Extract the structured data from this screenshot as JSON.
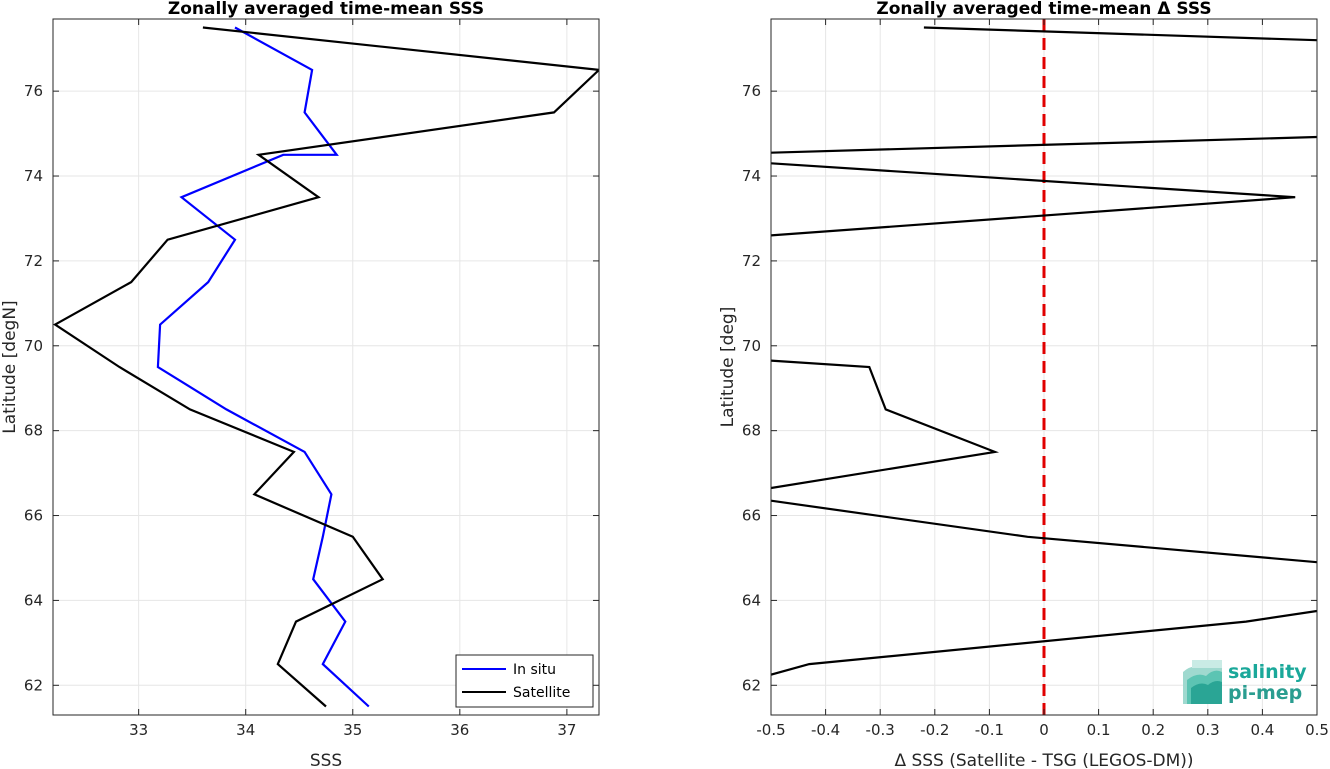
{
  "chart_data": [
    {
      "type": "line",
      "title": "Zonally averaged time-mean SSS",
      "xlabel": "SSS",
      "ylabel": "Latitude [degN]",
      "xlim": [
        32.2,
        37.3
      ],
      "ylim": [
        61.3,
        77.7
      ],
      "xticks": [
        33,
        34,
        35,
        36,
        37
      ],
      "yticks": [
        62,
        64,
        66,
        68,
        70,
        72,
        74,
        76
      ],
      "grid": true,
      "legend": "bottom-right",
      "series": [
        {
          "name": "In situ",
          "color": "#0000ff",
          "points": [
            [
              35.15,
              61.5
            ],
            [
              34.72,
              62.5
            ],
            [
              34.93,
              63.5
            ],
            [
              34.63,
              64.5
            ],
            [
              34.72,
              65.5
            ],
            [
              34.8,
              66.5
            ],
            [
              34.55,
              67.5
            ],
            [
              33.82,
              68.5
            ],
            [
              33.18,
              69.5
            ],
            [
              33.2,
              70.5
            ],
            [
              33.65,
              71.5
            ],
            [
              33.9,
              72.5
            ],
            [
              33.4,
              73.5
            ],
            [
              34.35,
              74.5
            ],
            [
              34.85,
              74.5
            ],
            [
              34.55,
              75.5
            ],
            [
              34.62,
              76.5
            ],
            [
              33.9,
              77.5
            ]
          ]
        },
        {
          "name": "Satellite",
          "color": "#000000",
          "points": [
            [
              34.75,
              61.5
            ],
            [
              34.3,
              62.5
            ],
            [
              34.47,
              63.5
            ],
            [
              35.28,
              64.5
            ],
            [
              35.0,
              65.5
            ],
            [
              34.08,
              66.5
            ],
            [
              34.45,
              67.5
            ],
            [
              33.48,
              68.5
            ],
            [
              32.82,
              69.5
            ],
            [
              32.22,
              70.5
            ],
            [
              32.93,
              71.5
            ],
            [
              33.27,
              72.5
            ],
            [
              34.68,
              73.5
            ],
            [
              34.12,
              74.5
            ],
            [
              36.88,
              75.5
            ],
            [
              37.3,
              76.5
            ],
            [
              33.6,
              77.5
            ]
          ]
        }
      ]
    },
    {
      "type": "line",
      "title": "Zonally averaged time-mean Δ SSS",
      "xlabel": "Δ SSS (Satellite - TSG (LEGOS-DM))",
      "ylabel": "Latitude [deg]",
      "xlim": [
        -0.5,
        0.5
      ],
      "ylim": [
        61.3,
        77.7
      ],
      "xticks": [
        -0.5,
        -0.4,
        -0.3,
        -0.2,
        -0.1,
        0,
        0.1,
        0.2,
        0.3,
        0.4,
        0.5
      ],
      "yticks": [
        62,
        64,
        66,
        68,
        70,
        72,
        74,
        76
      ],
      "grid": true,
      "zero_line": {
        "x": 0,
        "color": "#e00000",
        "style": "dashed"
      },
      "series": [
        {
          "color": "#000000",
          "points": [
            [
              -0.5,
              62.25
            ],
            [
              -0.43,
              62.5
            ],
            [
              0.37,
              63.5
            ],
            [
              0.5,
              63.75
            ]
          ]
        },
        {
          "color": "#000000",
          "points": [
            [
              0.5,
              64.9
            ],
            [
              -0.03,
              65.5
            ],
            [
              -0.5,
              66.35
            ]
          ]
        },
        {
          "color": "#000000",
          "points": [
            [
              -0.5,
              66.65
            ],
            [
              -0.09,
              67.5
            ],
            [
              -0.29,
              68.5
            ],
            [
              -0.32,
              69.5
            ],
            [
              -0.5,
              69.65
            ]
          ]
        },
        {
          "color": "#000000",
          "points": [
            [
              -0.5,
              72.6
            ],
            [
              0.46,
              73.5
            ],
            [
              -0.5,
              74.3
            ]
          ]
        },
        {
          "color": "#000000",
          "points": [
            [
              -0.5,
              74.55
            ],
            [
              0.5,
              74.92
            ]
          ]
        },
        {
          "color": "#000000",
          "points": [
            [
              0.5,
              77.2
            ],
            [
              -0.22,
              77.5
            ]
          ]
        }
      ]
    }
  ],
  "logo": {
    "line1": "salinity",
    "line2": "pi-mep",
    "color": "#1aa89a"
  }
}
